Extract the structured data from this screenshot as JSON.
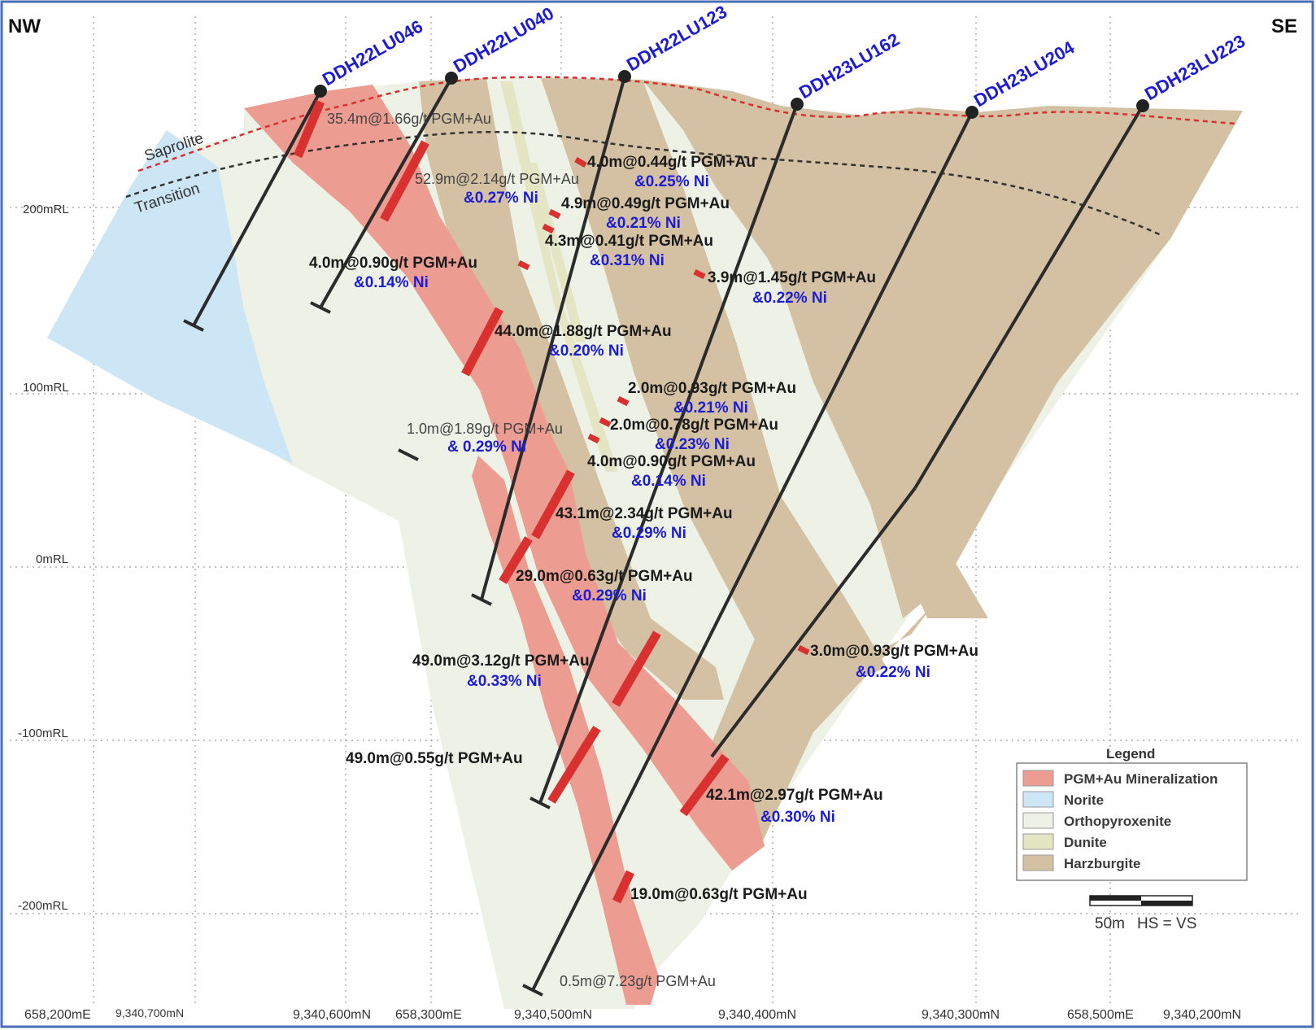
{
  "orientation": {
    "left": "NW",
    "right": "SE"
  },
  "rl_labels": [
    {
      "value": 200,
      "label": "200mRL"
    },
    {
      "value": 100,
      "label": "100mRL"
    },
    {
      "value": 0,
      "label": "0mRL"
    },
    {
      "value": -100,
      "label": "-100mRL"
    },
    {
      "value": -200,
      "label": "-200mRL"
    }
  ],
  "bottom_coords": [
    "658,200mE",
    "9,340,700mN",
    "9,340,600mN",
    "658,300mE",
    "9,340,500mN",
    "9,340,400mN",
    "9,340,300mN",
    "658,500mE",
    "9,340,200mN"
  ],
  "weathering": {
    "saprolite": "Saprolite",
    "transition": "Transition"
  },
  "holes": [
    "DDH22LU046",
    "DDH22LU040",
    "DDH22LU123",
    "DDH23LU162",
    "DDH23LU204",
    "DDH23LU223"
  ],
  "intercepts": [
    {
      "grade": "35.4m@1.66g/t PGM+Au",
      "ni": ""
    },
    {
      "grade": "4.0m@0.44g/t PGM+Au",
      "ni": "&0.25% Ni"
    },
    {
      "grade": "52.9m@2.14g/t PGM+Au",
      "ni": "&0.27% Ni"
    },
    {
      "grade": "4.9m@0.49g/t PGM+Au",
      "ni": "&0.21% Ni"
    },
    {
      "grade": "4.3m@0.41g/t PGM+Au",
      "ni": "&0.31% Ni"
    },
    {
      "grade": "4.0m@0.90g/t PGM+Au",
      "ni": "&0.14% Ni"
    },
    {
      "grade": "3.9m@1.45g/t PGM+Au",
      "ni": "&0.22% Ni"
    },
    {
      "grade": "44.0m@1.88g/t PGM+Au",
      "ni": "&0.20% Ni"
    },
    {
      "grade": "2.0m@0.93g/t PGM+Au",
      "ni": "&0.21% Ni"
    },
    {
      "grade": "1.0m@1.89g/t PGM+Au",
      "ni": "& 0.29% Ni"
    },
    {
      "grade": "2.0m@0.78g/t PGM+Au",
      "ni": "&0.23% Ni"
    },
    {
      "grade": "4.0m@0.90g/t PGM+Au",
      "ni": "&0.14% Ni"
    },
    {
      "grade": "43.1m@2.34g/t PGM+Au",
      "ni": "&0.29% Ni"
    },
    {
      "grade": "29.0m@0.63g/t PGM+Au",
      "ni": "&0.29% Ni"
    },
    {
      "grade": "3.0m@0.93g/t PGM+Au",
      "ni": "&0.22% Ni"
    },
    {
      "grade": "49.0m@3.12g/t PGM+Au",
      "ni": "&0.33% Ni"
    },
    {
      "grade": "49.0m@0.55g/t PGM+Au",
      "ni": ""
    },
    {
      "grade": "42.1m@2.97g/t PGM+Au",
      "ni": "&0.30% Ni"
    },
    {
      "grade": "19.0m@0.63g/t PGM+Au",
      "ni": ""
    },
    {
      "grade": "0.5m@7.23g/t PGM+Au",
      "ni": ""
    }
  ],
  "legend": {
    "title": "Legend",
    "items": [
      {
        "label": "PGM+Au Mineralization",
        "color": "#ec9c90"
      },
      {
        "label": "Norite",
        "color": "#cde6f6"
      },
      {
        "label": "Orthopyroxenite",
        "color": "#eef2e6"
      },
      {
        "label": "Dunite",
        "color": "#e3e5c3"
      },
      {
        "label": "Harzburgite",
        "color": "#d4c1a3"
      }
    ]
  },
  "scale_bar": {
    "label": "50m",
    "note": "HS = VS"
  },
  "colors": {
    "frame": "#4a6fb5",
    "hole_label": "#1c1cd6",
    "intercept": "#d93030",
    "saprolite_line": "#d93030",
    "transition_line": "#333333"
  }
}
